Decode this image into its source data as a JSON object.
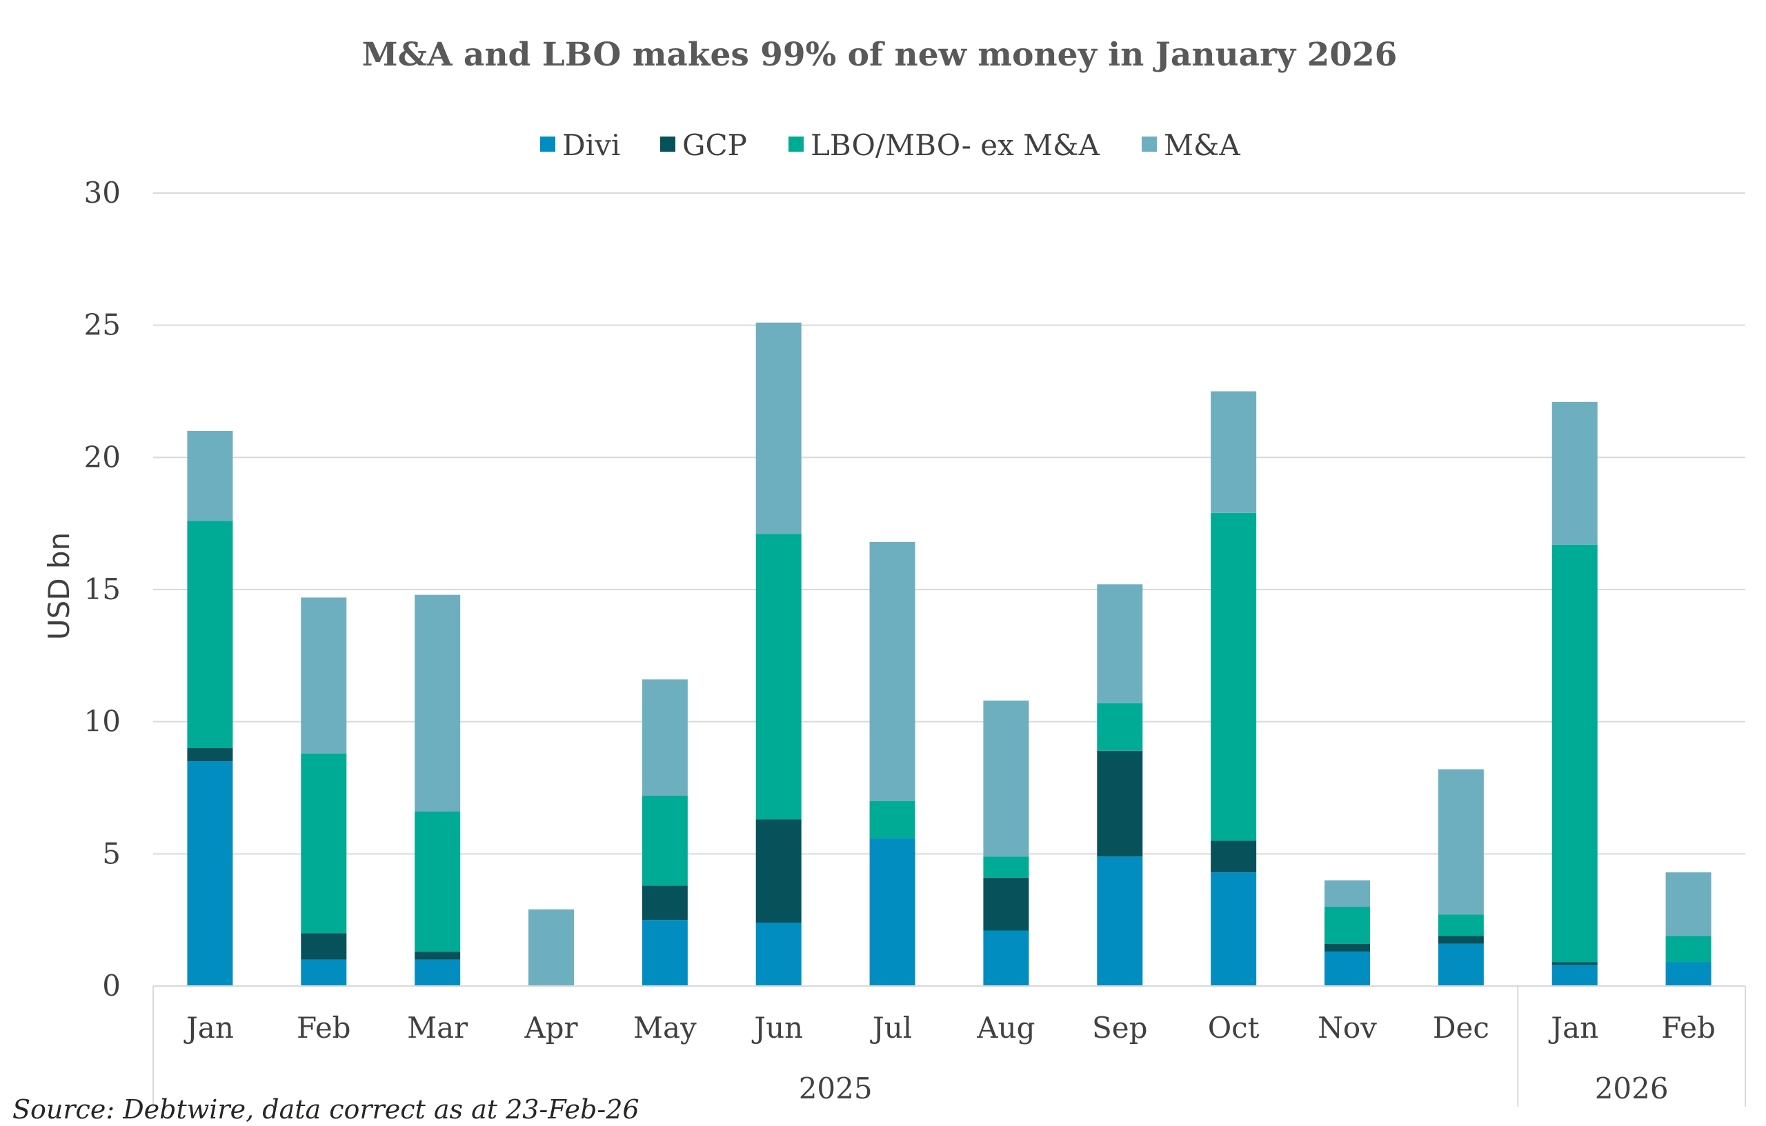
{
  "chart_data": {
    "type": "bar",
    "stacked": true,
    "title": "M&A and LBO makes 99% of new money in January 2026",
    "ylabel": "USD bn",
    "xlabel": "",
    "ylim": [
      0,
      30
    ],
    "yticks": [
      "0",
      "5",
      "10",
      "15",
      "20",
      "25",
      "30"
    ],
    "grid": true,
    "legend_position": "top-center",
    "categories": [
      "Jan",
      "Feb",
      "Mar",
      "Apr",
      "May",
      "Jun",
      "Jul",
      "Aug",
      "Sep",
      "Oct",
      "Nov",
      "Dec",
      "Jan",
      "Feb"
    ],
    "groups": [
      {
        "label": "2025",
        "start": 0,
        "end": 11
      },
      {
        "label": "2026",
        "start": 12,
        "end": 13
      }
    ],
    "series": [
      {
        "name": "Divi",
        "color": "#028dc1",
        "values": [
          8.5,
          1.0,
          1.0,
          0,
          2.5,
          2.4,
          5.6,
          2.1,
          4.9,
          4.3,
          1.3,
          1.6,
          0.8,
          0.9
        ]
      },
      {
        "name": "GCP",
        "color": "#07515b",
        "values": [
          0.5,
          1.0,
          0.3,
          0,
          1.3,
          3.9,
          0,
          2.0,
          4.0,
          1.2,
          0.3,
          0.3,
          0.1,
          0
        ]
      },
      {
        "name": "LBO/MBO- ex M&A",
        "color": "#00ab96",
        "values": [
          8.6,
          6.8,
          5.3,
          0,
          3.4,
          10.8,
          1.4,
          0.8,
          1.8,
          12.4,
          1.4,
          0.8,
          15.8,
          1.0
        ]
      },
      {
        "name": "M&A",
        "color": "#6eafbf",
        "values": [
          3.4,
          5.9,
          8.2,
          2.9,
          4.4,
          8.0,
          9.8,
          5.9,
          4.5,
          4.6,
          1.0,
          5.5,
          5.4,
          2.4
        ]
      }
    ]
  },
  "source_note": "Source: Debtwire, data correct as at  23-Feb-26"
}
